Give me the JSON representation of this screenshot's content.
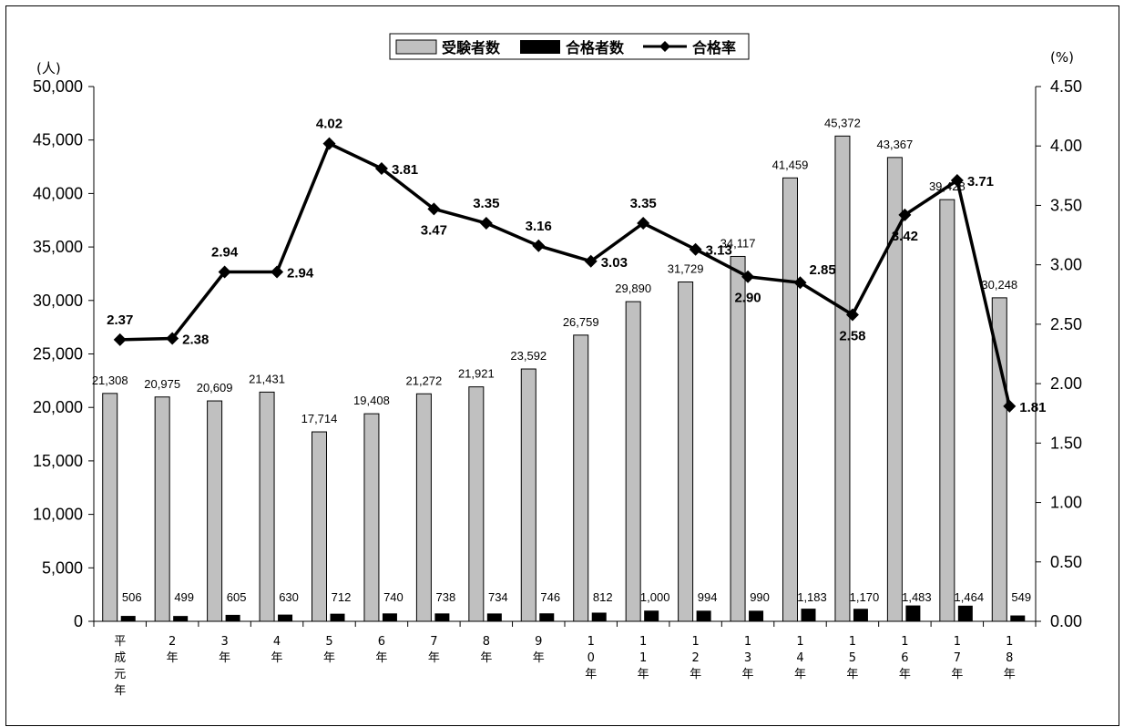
{
  "chart_data": {
    "type": "bar",
    "categories": [
      "平成元年",
      "2年",
      "3年",
      "4年",
      "5年",
      "6年",
      "7年",
      "8年",
      "9年",
      "10年",
      "11年",
      "12年",
      "13年",
      "14年",
      "15年",
      "16年",
      "17年",
      "18年"
    ],
    "series": [
      {
        "name": "受験者数",
        "type": "bar",
        "axis": "left",
        "color": "#c0c0c0",
        "values": [
          21308,
          20975,
          20609,
          21431,
          17714,
          19408,
          21272,
          21921,
          23592,
          26759,
          29890,
          31729,
          34117,
          41459,
          45372,
          43367,
          39428,
          30248
        ],
        "labels": [
          "21,308",
          "20,975",
          "20,609",
          "21,431",
          "17,714",
          "19,408",
          "21,272",
          "21,921",
          "23,592",
          "26,759",
          "29,890",
          "31,729",
          "34,117",
          "41,459",
          "45,372",
          "43,367",
          "39,428",
          "30,248"
        ]
      },
      {
        "name": "合格者数",
        "type": "bar",
        "axis": "left",
        "color": "#000000",
        "values": [
          506,
          499,
          605,
          630,
          712,
          740,
          738,
          734,
          746,
          812,
          1000,
          994,
          990,
          1183,
          1170,
          1483,
          1464,
          549
        ],
        "labels": [
          "506",
          "499",
          "605",
          "630",
          "712",
          "740",
          "738",
          "734",
          "746",
          "812",
          "1,000",
          "994",
          "990",
          "1,183",
          "1,170",
          "1,483",
          "1,464",
          "549"
        ]
      },
      {
        "name": "合格率",
        "type": "line",
        "axis": "right",
        "color": "#000000",
        "values": [
          2.37,
          2.38,
          2.94,
          2.94,
          4.02,
          3.81,
          3.47,
          3.35,
          3.16,
          3.03,
          3.35,
          3.13,
          2.9,
          2.85,
          2.58,
          3.42,
          3.71,
          1.81
        ],
        "labels": [
          "2.37",
          "2.38",
          "2.94",
          "2.94",
          "4.02",
          "3.81",
          "3.47",
          "3.35",
          "3.16",
          "3.03",
          "3.35",
          "3.13",
          "2.90",
          "2.85",
          "2.58",
          "3.42",
          "3.71",
          "1.81"
        ]
      }
    ],
    "y_left": {
      "unit": "(人)",
      "range": [
        0,
        50000
      ],
      "ticks": [
        0,
        5000,
        10000,
        15000,
        20000,
        25000,
        30000,
        35000,
        40000,
        45000,
        50000
      ],
      "tick_labels": [
        "0",
        "5,000",
        "10,000",
        "15,000",
        "20,000",
        "25,000",
        "30,000",
        "35,000",
        "40,000",
        "45,000",
        "50,000"
      ]
    },
    "y_right": {
      "unit": "(%)",
      "range": [
        0,
        4.5
      ],
      "ticks": [
        0,
        0.5,
        1,
        1.5,
        2,
        2.5,
        3,
        3.5,
        4,
        4.5
      ],
      "tick_labels": [
        "0.00",
        "0.50",
        "1.00",
        "1.50",
        "2.00",
        "2.50",
        "3.00",
        "3.50",
        "4.00",
        "4.50"
      ]
    },
    "legend": {
      "placement": "top-center",
      "items": [
        "受験者数",
        "合格者数",
        "合格率"
      ]
    },
    "grid": false
  }
}
